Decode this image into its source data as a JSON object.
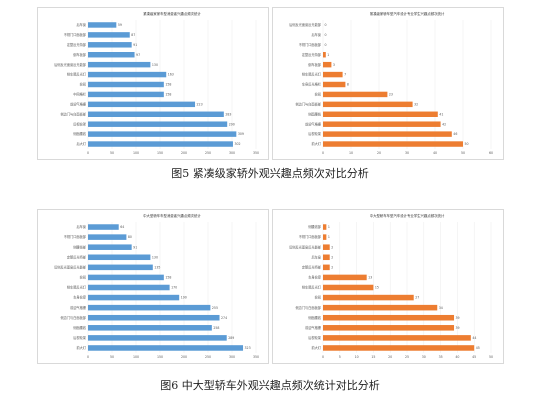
{
  "figures": [
    {
      "caption": "图5 紧凑级家轿外观兴趣点频次对比分析"
    },
    {
      "caption": "图6 中大型轿车外观兴趣点频次统计对比分析"
    }
  ],
  "colors": {
    "consumer": "#5b9bd5",
    "student": "#ed7d31"
  },
  "chart_data": [
    {
      "type": "bar",
      "orientation": "horizontal",
      "title": "紧凑级家家车型消费者兴趣点频次统计",
      "color": "#5b9bd5",
      "categories": [
        "后车窗",
        "不规门口面板部",
        "定整反光特部",
        "倒车板部",
        "后侧反光面窗反光能部",
        "侧车尾反光灯",
        "轮毂",
        "中网格栏",
        "前迎气格栅",
        "侧边门与白面板部",
        "后视轮架",
        "侧面腰线",
        "后大灯"
      ],
      "values": [
        59,
        87,
        91,
        97,
        130,
        163,
        158,
        158,
        223,
        283,
        290,
        309,
        302
      ],
      "xlim": [
        0,
        350
      ],
      "xticks": [
        0,
        50,
        100,
        150,
        200,
        250,
        300,
        350
      ]
    },
    {
      "type": "bar",
      "orientation": "horizontal",
      "title": "紧凑级家轿车型汽车设计专业学生兴趣点频次统计",
      "color": "#ed7d31",
      "categories": [
        "后侧反光面窗反光能部",
        "后车窗",
        "不规门口面板部",
        "定整反光特部",
        "倒车板部",
        "侧车尾反光灯",
        "车身反光格栏",
        "轮毂",
        "侧边门与白面板部",
        "侧面腰线",
        "前迎气格栅",
        "后视轮架",
        "前大灯"
      ],
      "values": [
        0,
        0,
        0,
        1,
        3,
        7,
        8,
        23,
        32,
        41,
        42,
        46,
        50
      ],
      "xlim": [
        0,
        60
      ],
      "xticks": [
        0,
        10,
        20,
        30,
        40,
        50,
        60
      ]
    },
    {
      "type": "bar",
      "orientation": "horizontal",
      "title": "中大型轿车车型消费者兴趣点频次统计",
      "color": "#5b9bd5",
      "categories": [
        "后车窗",
        "不规门口面板部",
        "侧腰线部",
        "定整反光特部",
        "后侧反光面窗反光能部",
        "轮毂",
        "侧车尾反光灯",
        "车身轮廓",
        "前迎气格栅",
        "侧边门与白面板部",
        "侧面腰线",
        "后视轮架",
        "前大灯"
      ],
      "values": [
        64,
        80,
        91,
        130,
        135,
        158,
        170,
        190,
        255,
        274,
        258,
        289,
        323
      ],
      "xlim": [
        0,
        350
      ],
      "xticks": [
        0,
        50,
        100,
        150,
        200,
        250,
        300,
        350
      ]
    },
    {
      "type": "bar",
      "orientation": "horizontal",
      "title": "中大型轿车车型汽车设计专业学生兴趣点频次统计",
      "color": "#ed7d31",
      "categories": [
        "侧腰线部",
        "不规门口面板部",
        "后侧反光面窗反光能部",
        "后车窗",
        "定整反光特部",
        "车身轮廓",
        "侧车尾反光灯",
        "轮毂",
        "侧边门与白面板部",
        "侧面腰线",
        "前迎气格栅",
        "后视轮架",
        "前大灯"
      ],
      "values": [
        1,
        1,
        2,
        2,
        2,
        13,
        15,
        27,
        34,
        39,
        39,
        44,
        45
      ],
      "xlim": [
        0,
        50
      ],
      "xticks": [
        0,
        5,
        10,
        15,
        20,
        25,
        30,
        35,
        40,
        45,
        50
      ]
    }
  ]
}
